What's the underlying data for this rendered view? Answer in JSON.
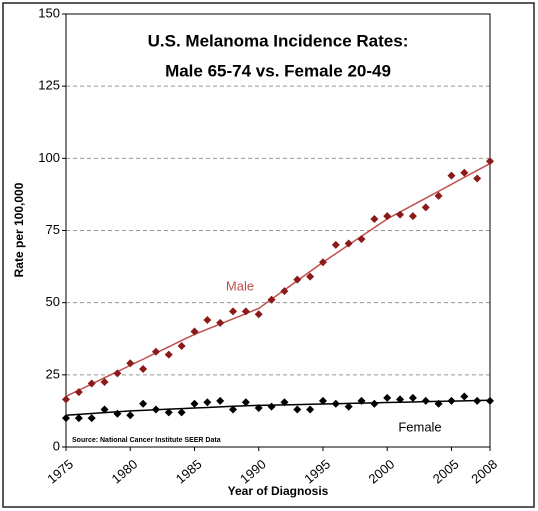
{
  "chart_data": {
    "type": "scatter",
    "title": "U.S. Melanoma Incidence Rates:",
    "subtitle": "Male 65-74 vs. Female 20-49",
    "x_label": "Year of Diagnosis",
    "y_label": "Rate per 100,000",
    "source": "Source: National Cancer Institute SEER Data",
    "x": [
      1975,
      1976,
      1977,
      1978,
      1979,
      1980,
      1981,
      1982,
      1983,
      1984,
      1985,
      1986,
      1987,
      1988,
      1989,
      1990,
      1991,
      1992,
      1993,
      1994,
      1995,
      1996,
      1997,
      1998,
      1999,
      2000,
      2001,
      2002,
      2003,
      2004,
      2005,
      2006,
      2007,
      2008
    ],
    "series": [
      {
        "name": "Male",
        "color": "#c0504d",
        "marker_color": "#8b1a1a",
        "values": [
          16.5,
          19,
          22,
          22.5,
          25.5,
          29,
          27,
          33,
          32,
          35,
          40,
          44,
          43,
          47,
          47,
          46,
          51,
          54,
          58,
          59,
          64,
          70,
          70.5,
          72,
          79,
          80,
          80.5,
          80,
          83,
          87,
          94,
          95,
          93,
          99
        ],
        "trend_values": [
          17.5,
          19.7,
          21.8,
          24,
          26.1,
          28.3,
          30.4,
          32.6,
          34.7,
          36.9,
          39,
          40.8,
          42.6,
          44.4,
          46.2,
          48,
          51.2,
          54.4,
          57.6,
          60.8,
          64,
          67,
          70,
          73,
          76,
          79,
          81.4,
          83.8,
          86.2,
          88.6,
          91,
          93.4,
          95.8,
          98.2
        ]
      },
      {
        "name": "Female",
        "color": "#000000",
        "marker_color": "#000000",
        "values": [
          10,
          10,
          10,
          13,
          11.5,
          11,
          15,
          13,
          12,
          12,
          15,
          15.5,
          16,
          13,
          15.5,
          13.5,
          14,
          15.5,
          13,
          13,
          16,
          15,
          14,
          16,
          15,
          17,
          16.5,
          17,
          16,
          15,
          16,
          17.5,
          16,
          16
        ],
        "trend_values": [
          11,
          11.3,
          11.6,
          11.9,
          12.2,
          12.5,
          12.7,
          12.9,
          13.1,
          13.3,
          13.5,
          13.7,
          13.9,
          14.1,
          14.3,
          14.4,
          14.5,
          14.6,
          14.7,
          14.8,
          14.9,
          15,
          15.1,
          15.2,
          15.3,
          15.4,
          15.5,
          15.6,
          15.7,
          15.8,
          15.9,
          16,
          16.1,
          16.2
        ]
      }
    ],
    "xlim": [
      1975,
      2008
    ],
    "xticks": [
      1975,
      1980,
      1985,
      1990,
      1995,
      2000,
      2005,
      2008
    ],
    "ylim": [
      0,
      150
    ],
    "yticks": [
      0,
      25,
      50,
      75,
      100,
      125,
      150
    ],
    "grid": true
  }
}
